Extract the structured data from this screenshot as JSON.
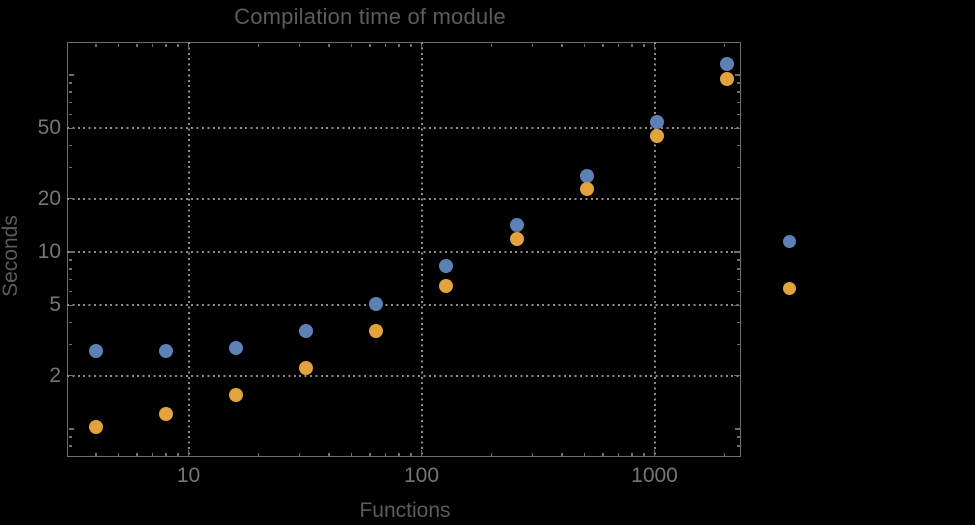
{
  "title": "Compilation time of module",
  "x_axis": {
    "label": "Functions",
    "tick_labels": [
      "10",
      "100",
      "1000"
    ]
  },
  "y_axis": {
    "label": "Seconds",
    "tick_labels": [
      "50",
      "20",
      "10",
      "5",
      "2"
    ]
  },
  "legend": {
    "markers": [
      {
        "series": "series-1",
        "color": "#5E81B5"
      },
      {
        "series": "series-2",
        "color": "#E3A33C"
      }
    ]
  },
  "colors": {
    "background": "#000000",
    "frame": "#6e6e6e",
    "gridline": "#8c8c8c",
    "title_text": "#5c5c5c",
    "axis_label_text": "#5c5c5c",
    "tick_label_text": "#767676",
    "series1_blue": "#5E81B5",
    "series2_orange": "#E3A33C"
  },
  "chart_data": {
    "type": "scatter",
    "title": "Compilation time of module",
    "xlabel": "Functions",
    "ylabel": "Seconds",
    "x_scale": "log",
    "y_scale": "log",
    "xlim": [
      3,
      2350
    ],
    "ylim": [
      0.7,
      154
    ],
    "grid": "dotted",
    "x": [
      4,
      8,
      16,
      32,
      64,
      128,
      256,
      512,
      1024,
      2048
    ],
    "series": [
      {
        "name": "series-1-blue",
        "color": "#5E81B5",
        "values": [
          2.76,
          2.76,
          2.88,
          3.6,
          5.07,
          8.3,
          14.3,
          27,
          54,
          115
        ]
      },
      {
        "name": "series-2-orange",
        "color": "#E3A33C",
        "values": [
          1.03,
          1.21,
          1.55,
          2.2,
          3.58,
          6.4,
          11.8,
          22.6,
          45,
          95
        ]
      }
    ],
    "x_ticks": [
      10,
      100,
      1000
    ],
    "y_ticks": [
      50,
      20,
      10,
      5,
      2
    ],
    "x_minor_ticks": [
      4,
      5,
      6,
      7,
      8,
      9,
      20,
      30,
      40,
      50,
      60,
      70,
      80,
      90,
      200,
      300,
      400,
      500,
      600,
      700,
      800,
      900,
      2000
    ],
    "y_minor_ticks": [
      0.8,
      0.9,
      3,
      4,
      6,
      7,
      8,
      9,
      30,
      40,
      60,
      70,
      80,
      90
    ],
    "y_medium_ticks": [
      1,
      100
    ],
    "legend_position": "right-outside"
  }
}
